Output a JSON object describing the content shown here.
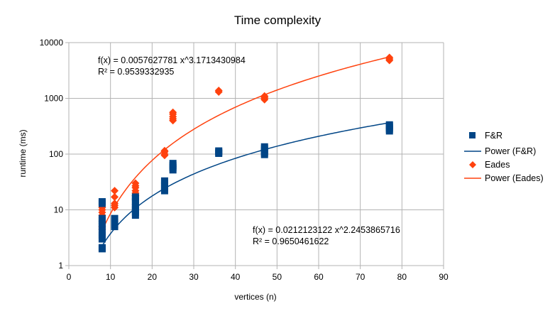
{
  "chart_data": {
    "type": "scatter",
    "title": "Time complexity",
    "xlabel": "vertices (n)",
    "ylabel": "runtime (ms)",
    "xlim": [
      0,
      90
    ],
    "ylim": [
      1,
      10000
    ],
    "yscale": "log",
    "x_ticks": [
      "0",
      "10",
      "20",
      "30",
      "40",
      "50",
      "60",
      "70",
      "80",
      "90"
    ],
    "y_ticks": [
      "1",
      "10",
      "100",
      "1000",
      "10000"
    ],
    "grid": true,
    "legend_position": "right",
    "series": [
      {
        "name": "F&R",
        "marker": "square",
        "color": "#004586",
        "points": [
          [
            8,
            2
          ],
          [
            8,
            2.1
          ],
          [
            8,
            3
          ],
          [
            8,
            3.5
          ],
          [
            8,
            4
          ],
          [
            8,
            5
          ],
          [
            8,
            5.5
          ],
          [
            8,
            6.5
          ],
          [
            8,
            7
          ],
          [
            8,
            13
          ],
          [
            8,
            14
          ],
          [
            11,
            5
          ],
          [
            11,
            5.5
          ],
          [
            11,
            6
          ],
          [
            11,
            7
          ],
          [
            16,
            8
          ],
          [
            16,
            9
          ],
          [
            16,
            10
          ],
          [
            16,
            11
          ],
          [
            16,
            12
          ],
          [
            16,
            14
          ],
          [
            16,
            16
          ],
          [
            16,
            17
          ],
          [
            23,
            22
          ],
          [
            23,
            24
          ],
          [
            23,
            27
          ],
          [
            23,
            30
          ],
          [
            23,
            33
          ],
          [
            25,
            52
          ],
          [
            25,
            57
          ],
          [
            25,
            62
          ],
          [
            25,
            68
          ],
          [
            36,
            103
          ],
          [
            36,
            108
          ],
          [
            36,
            114
          ],
          [
            47,
            98
          ],
          [
            47,
            105
          ],
          [
            47,
            115
          ],
          [
            47,
            125
          ],
          [
            47,
            135
          ],
          [
            77,
            260
          ],
          [
            77,
            280
          ],
          [
            77,
            300
          ],
          [
            77,
            320
          ],
          [
            77,
            335
          ]
        ]
      },
      {
        "name": "Eades",
        "marker": "diamond",
        "color": "#ff420e",
        "points": [
          [
            8,
            4.5
          ],
          [
            8,
            5
          ],
          [
            8,
            8
          ],
          [
            8,
            9
          ],
          [
            8,
            10
          ],
          [
            8,
            11
          ],
          [
            11,
            11
          ],
          [
            11,
            12
          ],
          [
            11,
            13
          ],
          [
            11,
            17
          ],
          [
            11,
            22
          ],
          [
            16,
            18
          ],
          [
            16,
            20
          ],
          [
            16,
            22
          ],
          [
            16,
            25
          ],
          [
            16,
            27
          ],
          [
            16,
            30
          ],
          [
            23,
            95
          ],
          [
            23,
            100
          ],
          [
            23,
            110
          ],
          [
            23,
            115
          ],
          [
            25,
            400
          ],
          [
            25,
            430
          ],
          [
            25,
            470
          ],
          [
            25,
            520
          ],
          [
            25,
            560
          ],
          [
            36,
            1300
          ],
          [
            36,
            1380
          ],
          [
            47,
            950
          ],
          [
            47,
            1000
          ],
          [
            47,
            1050
          ],
          [
            47,
            1100
          ],
          [
            77,
            4800
          ],
          [
            77,
            5100
          ],
          [
            77,
            5400
          ]
        ]
      }
    ],
    "trendlines": [
      {
        "name": "Power (F&R)",
        "type": "power",
        "a": 0.0212123122,
        "b": 2.2453865716,
        "color": "#004586",
        "x_from": 8,
        "x_to": 77
      },
      {
        "name": "Power (Eades)",
        "type": "power",
        "a": 0.0057627781,
        "b": 3.1713430984,
        "color": "#ff420e",
        "x_from": 8,
        "x_to": 77
      }
    ],
    "annotations": [
      {
        "id": "eades-eq",
        "line1": "f(x) = 0.0057627781 x^3.1713430984",
        "line2": "R² = 0.9539332935"
      },
      {
        "id": "fr-eq",
        "line1": "f(x) = 0.0212123122 x^2.2453865716",
        "line2": "R² = 0.9650461622"
      }
    ],
    "legend": [
      "F&R",
      "Power (F&R)",
      "Eades",
      "Power (Eades)"
    ]
  }
}
